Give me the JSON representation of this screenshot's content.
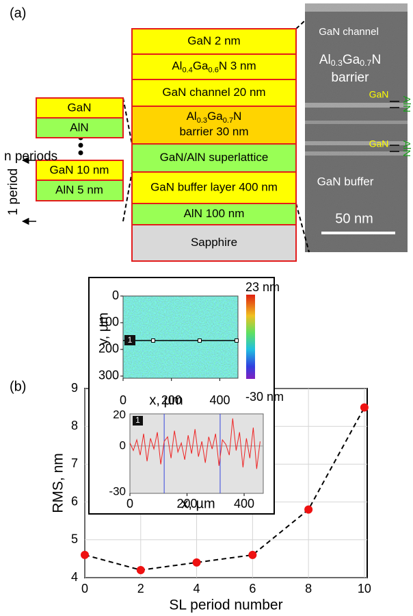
{
  "panel_a": {
    "label": "(a)",
    "left_stack": {
      "top": [
        "GaN",
        "AlN"
      ],
      "periods": "n periods",
      "bottom": [
        "GaN 10 nm",
        "AlN 5 nm"
      ],
      "period_label": "1 period"
    },
    "layers": [
      {
        "text": "GaN 2 nm"
      },
      {
        "parts": [
          "Al",
          "0.4",
          "Ga",
          "0.6",
          "N  3 nm"
        ]
      },
      {
        "text": "GaN channel 20 nm"
      },
      {
        "parts": [
          "Al",
          "0.3",
          "Ga",
          "0.7",
          "N"
        ],
        "line2": "barrier 30 nm"
      },
      {
        "text": "GaN/AlN superlattice"
      },
      {
        "text": "GaN buffer layer 400 nm"
      },
      {
        "text": "AlN 100 nm"
      },
      {
        "text": "Sapphire"
      }
    ],
    "tem": {
      "channel": "GaN channel",
      "barrier_parts": [
        "Al",
        "0.3",
        "Ga",
        "0.7",
        "N"
      ],
      "barrier_line2": "barrier",
      "gan_labels": [
        "GaN",
        "GaN"
      ],
      "aln_labels": [
        "AlN",
        "AlN"
      ],
      "buffer": "GaN buffer",
      "scale": "50 nm"
    }
  },
  "panel_b_label": "(b)",
  "chart_data": [
    {
      "type": "line",
      "x": [
        0,
        2,
        4,
        6,
        8,
        10
      ],
      "values": [
        4.6,
        4.2,
        4.4,
        4.6,
        5.8,
        8.5
      ],
      "color": "#ee1111",
      "xlim": [
        0,
        10.1
      ],
      "ylim": [
        4,
        9
      ],
      "xticks": [
        0,
        2,
        4,
        6,
        8,
        10
      ],
      "yticks": [
        4,
        5,
        6,
        7,
        8,
        9
      ],
      "grid": true,
      "xlabel": "SL period number",
      "ylabel": "RMS, nm"
    },
    {
      "type": "image",
      "xlim": [
        0,
        475
      ],
      "ylim": [
        0,
        308
      ],
      "xticks": [
        0,
        200,
        400
      ],
      "yticks": [
        0,
        100,
        200,
        300
      ],
      "xlabel": "x, µm",
      "ylabel": "y, µm",
      "colorbar_labels": [
        "23 nm",
        "-30 nm"
      ],
      "marker_label": "1"
    },
    {
      "type": "line",
      "x": [
        0,
        12,
        24,
        36,
        48,
        60,
        72,
        84,
        96,
        108,
        120,
        132,
        144,
        156,
        168,
        180,
        192,
        204,
        216,
        228,
        240,
        252,
        264,
        276,
        288,
        300,
        312,
        324,
        336,
        348,
        360,
        372,
        384,
        396,
        408,
        420,
        432,
        444,
        456
      ],
      "values": [
        2,
        -3,
        4,
        -6,
        8,
        -10,
        5,
        -2,
        9,
        -12,
        3,
        6,
        -8,
        10,
        -4,
        2,
        -9,
        7,
        -5,
        11,
        -7,
        3,
        -11,
        6,
        -2,
        8,
        -13,
        4,
        1,
        -6,
        18,
        -3,
        9,
        -14,
        5,
        -8,
        12,
        -15,
        3
      ],
      "color": "#ee2222",
      "xlim": [
        0,
        467
      ],
      "ylim": [
        -31,
        21
      ],
      "xticks": [
        0,
        200,
        400
      ],
      "yticks": [
        20,
        0,
        -30
      ],
      "xlabel": "x, µm",
      "cursors": [
        120,
        316
      ],
      "marker_label": "1"
    }
  ]
}
